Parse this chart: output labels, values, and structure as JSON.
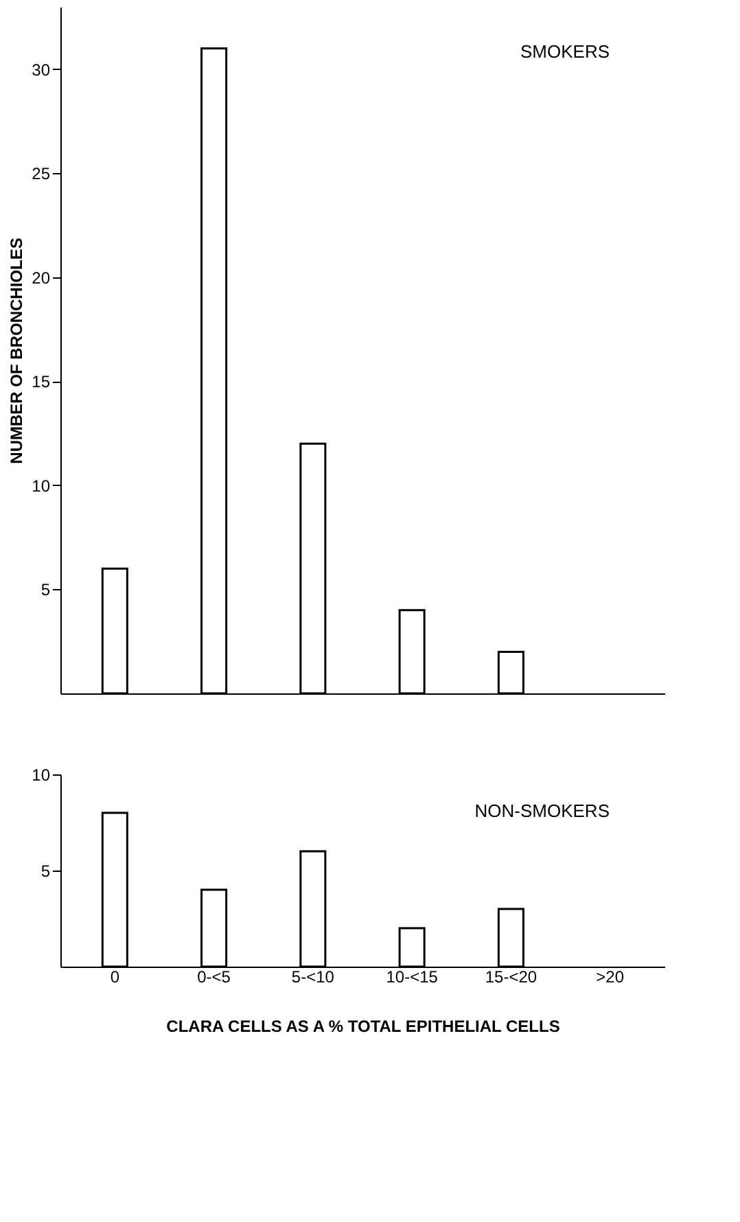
{
  "chart_data": [
    {
      "type": "bar",
      "title": "SMOKERS",
      "ylabel": "NUMBER OF BRONCHIOLES",
      "categories": [
        null,
        null,
        null,
        null,
        null,
        null
      ],
      "series": [
        {
          "color": "#ffffff",
          "values": [
            6,
            31,
            12,
            4,
            2,
            null
          ]
        }
      ],
      "ylim": [
        0,
        33
      ],
      "yticks": [
        5,
        10,
        15,
        20,
        25,
        30
      ],
      "grid": false
    },
    {
      "type": "bar",
      "title": "NON-SMOKERS",
      "xlabel": "CLARA  CELLS AS A % TOTAL EPITHELIAL CELLS",
      "categories": [
        "0",
        "0-<5",
        "5-<10",
        "10-<15",
        "15-<20",
        ">20"
      ],
      "series": [
        {
          "color": "#ffffff",
          "values": [
            8,
            4,
            6,
            2,
            3,
            null
          ]
        }
      ],
      "ylim": [
        0,
        10
      ],
      "yticks": [
        5,
        10
      ],
      "grid": false
    }
  ]
}
